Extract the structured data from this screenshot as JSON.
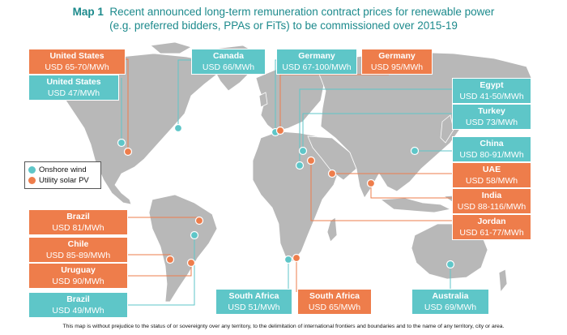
{
  "title": {
    "prefix": "Map 1",
    "line1": "Recent announced long-term remuneration contract prices for renewable power",
    "line2": "(e.g. preferred bidders, PPAs or FiTs) to be commissioned over 2015-19"
  },
  "legend": {
    "wind": "Onshore wind",
    "solar": "Utility solar PV"
  },
  "colors": {
    "wind": "#5ec6c8",
    "solar": "#ee7d4b",
    "land": "#b8b8b8",
    "title": "#1c8a8c"
  },
  "labels": [
    {
      "country": "United States",
      "price": "USD 65-70/MWh",
      "tech": "solar"
    },
    {
      "country": "United States",
      "price": "USD 47/MWh",
      "tech": "wind"
    },
    {
      "country": "Canada",
      "price": "USD 66/MWh",
      "tech": "wind"
    },
    {
      "country": "Germany",
      "price": "USD 67-100/MWh",
      "tech": "wind"
    },
    {
      "country": "Germany",
      "price": "USD 95/MWh",
      "tech": "solar"
    },
    {
      "country": "Egypt",
      "price": "USD 41-50/MWh",
      "tech": "wind"
    },
    {
      "country": "Turkey",
      "price": "USD 73/MWh",
      "tech": "wind"
    },
    {
      "country": "China",
      "price": "USD 80-91/MWh",
      "tech": "wind"
    },
    {
      "country": "UAE",
      "price": "USD 58/MWh",
      "tech": "solar"
    },
    {
      "country": "India",
      "price": "USD 88-116/MWh",
      "tech": "solar"
    },
    {
      "country": "Jordan",
      "price": "USD 61-77/MWh",
      "tech": "solar"
    },
    {
      "country": "Brazil",
      "price": "USD 81/MWh",
      "tech": "solar"
    },
    {
      "country": "Chile",
      "price": "USD 85-89/MWh",
      "tech": "solar"
    },
    {
      "country": "Uruguay",
      "price": "USD 90/MWh",
      "tech": "solar"
    },
    {
      "country": "Brazil",
      "price": "USD 49/MWh",
      "tech": "wind"
    },
    {
      "country": "South Africa",
      "price": "USD 51/MWh",
      "tech": "wind"
    },
    {
      "country": "South Africa",
      "price": "USD 65/MWh",
      "tech": "solar"
    },
    {
      "country": "Australia",
      "price": "USD 69/MWh",
      "tech": "wind"
    }
  ],
  "footnote": "This map is without prejudice to the status of or sovereignty over any territory, to the delimitation of international frontiers and boundaries and to the name of any territory, city or area."
}
